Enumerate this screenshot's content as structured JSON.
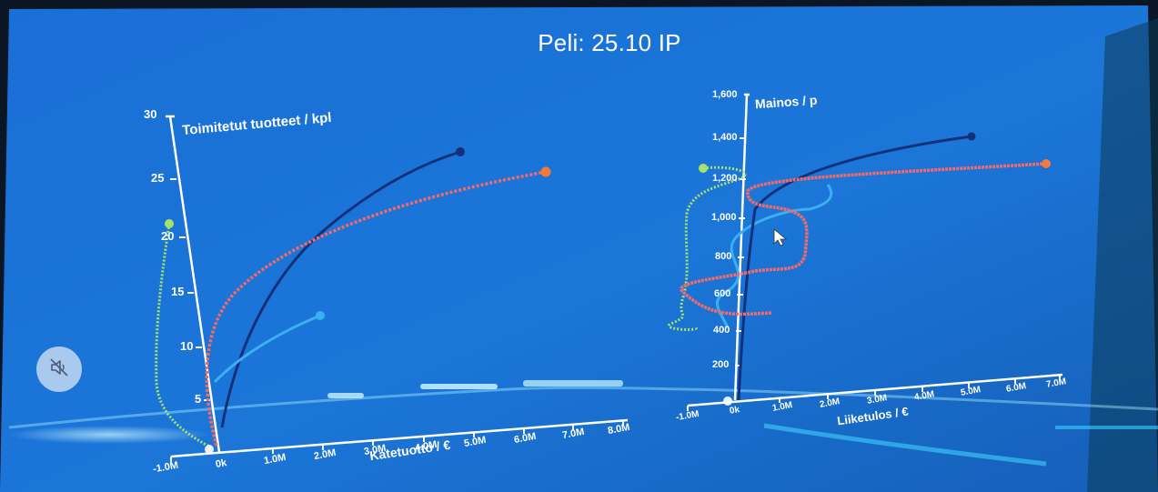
{
  "title": "Peli: 25.10 IP",
  "colors": {
    "background": "#1c6fd4",
    "series_navy": "#15307a",
    "series_red": "#f26a6a",
    "series_light_blue": "#3ab0f2",
    "series_green": "#a6e36b"
  },
  "mute_button": {
    "icon": "speaker-muted-icon"
  },
  "chart_data": [
    {
      "type": "line",
      "title": "Toimitetut tuotteet / kpl",
      "xlabel": "Katetuotto / €",
      "ylabel": "Toimitetut tuotteet / kpl",
      "x_tick_labels": [
        "-1.0M",
        "0k",
        "1.0M",
        "2.0M",
        "3.0M",
        "4.0M",
        "5.0M",
        "6.0M",
        "7.0M",
        "8.0M"
      ],
      "y_tick_labels": [
        "5",
        "10",
        "15",
        "20",
        "25",
        "30"
      ],
      "xlim": [
        -1.0,
        8.0
      ],
      "ylim": [
        0,
        30
      ],
      "grid": false
    },
    {
      "type": "line",
      "title": "Mainos / p",
      "xlabel": "Liiketulos / €",
      "ylabel": "Mainos / p",
      "x_tick_labels": [
        "-1.0M",
        "0k",
        "1.0M",
        "2.0M",
        "3.0M",
        "4.0M",
        "5.0M",
        "6.0M",
        "7.0M"
      ],
      "y_tick_labels": [
        "200",
        "400",
        "600",
        "800",
        "1,000",
        "1,200",
        "1,400",
        "1,600"
      ],
      "xlim": [
        -1.0,
        7.0
      ],
      "ylim": [
        0,
        1600
      ],
      "grid": false
    }
  ]
}
